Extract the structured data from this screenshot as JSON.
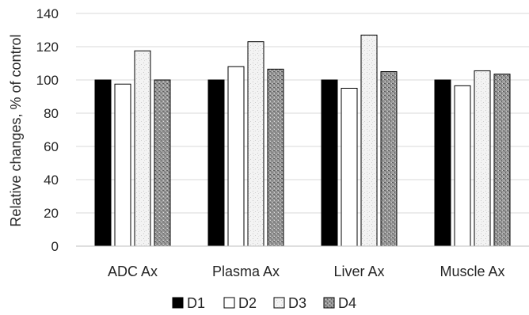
{
  "chart_data": {
    "type": "bar",
    "title": "",
    "xlabel": "",
    "ylabel": "Relative changes, % of control",
    "ylim": [
      0,
      140
    ],
    "yticks": [
      0,
      20,
      40,
      60,
      80,
      100,
      120,
      140
    ],
    "grid": true,
    "legend_position": "bottom",
    "categories": [
      "ADC Ax",
      "Plasma Ax",
      "Liver Ax",
      "Muscle Ax"
    ],
    "series": [
      {
        "name": "D1",
        "values": [
          100,
          100,
          100,
          100
        ],
        "color": "#000000",
        "pattern": "solid"
      },
      {
        "name": "D2",
        "values": [
          97.5,
          108,
          95,
          96.5
        ],
        "color": "#ffffff",
        "pattern": "solid"
      },
      {
        "name": "D3",
        "values": [
          117.5,
          123,
          127,
          105.5
        ],
        "color": "#f2f2f2",
        "pattern": "light-speckle"
      },
      {
        "name": "D4",
        "values": [
          100,
          106.5,
          105,
          103.5
        ],
        "color": "#8c8c8c",
        "pattern": "dark-speckle"
      }
    ]
  }
}
